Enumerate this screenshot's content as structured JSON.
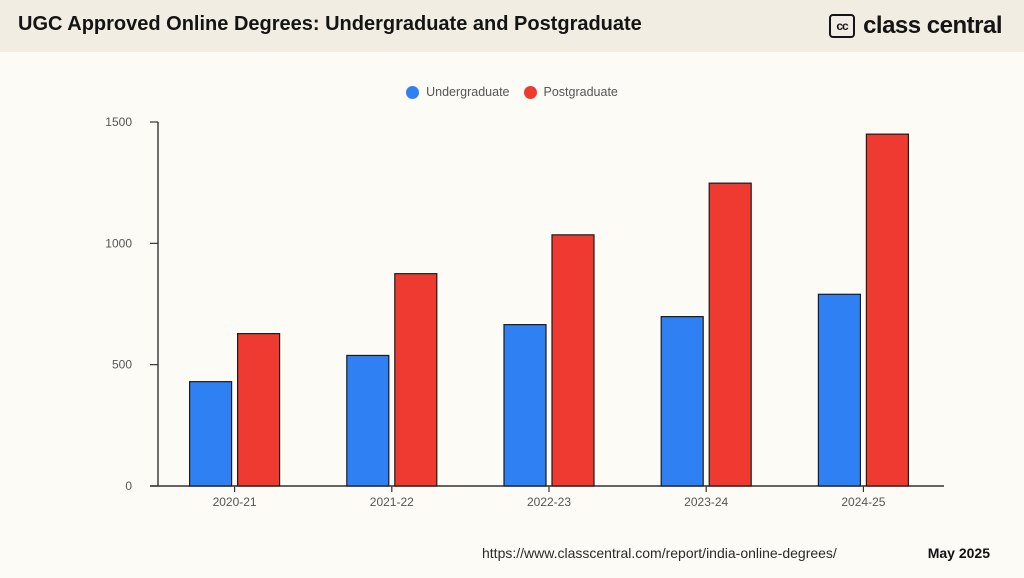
{
  "header": {
    "title": "UGC Approved Online Degrees: Undergraduate and Postgraduate",
    "brand_logo_text": "cc",
    "brand_name": "class central"
  },
  "footer": {
    "url": "https://www.classcentral.com/report/india-online-degrees/",
    "date": "May 2025"
  },
  "chart_data": {
    "type": "bar",
    "title": "",
    "xlabel": "",
    "ylabel": "",
    "categories": [
      "2020-21",
      "2021-22",
      "2022-23",
      "2023-24",
      "2024-25"
    ],
    "series": [
      {
        "name": "Undergraduate",
        "color": "#2f80f2",
        "values": [
          430,
          538,
          665,
          698,
          790
        ]
      },
      {
        "name": "Postgraduate",
        "color": "#ee3a30",
        "values": [
          628,
          875,
          1035,
          1248,
          1450
        ]
      }
    ],
    "ylim": [
      0,
      1500
    ],
    "yticks": [
      0,
      500,
      1000,
      1500
    ],
    "grid": false,
    "legend_position": "top-center"
  }
}
